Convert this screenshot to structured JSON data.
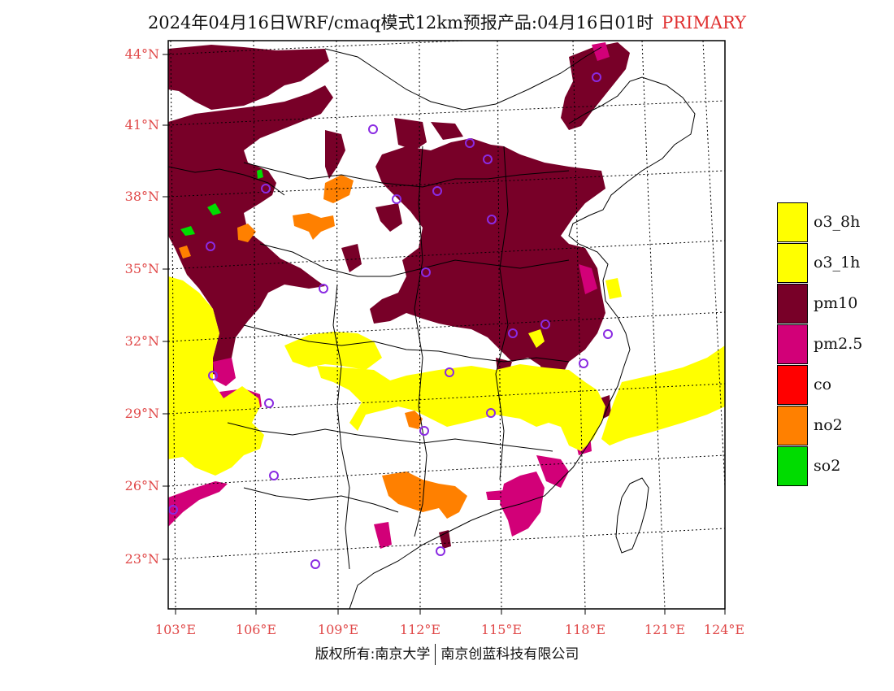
{
  "title": {
    "main": "2024年04月16日WRF/cmaq模式12km预报产品:04月16日01时",
    "tag": "PRIMARY"
  },
  "axes": {
    "lat_labels": [
      "44°N",
      "41°N",
      "38°N",
      "35°N",
      "32°N",
      "29°N",
      "26°N",
      "23°N"
    ],
    "lon_labels": [
      "103°E",
      "106°E",
      "109°E",
      "112°E",
      "115°E",
      "118°E",
      "121°E",
      "124°E"
    ]
  },
  "legend": {
    "items": [
      {
        "label": "o3_8h",
        "color": "#ffff00"
      },
      {
        "label": "o3_1h",
        "color": "#ffff00"
      },
      {
        "label": "pm10",
        "color": "#780028"
      },
      {
        "label": "pm2.5",
        "color": "#d20078"
      },
      {
        "label": "co",
        "color": "#ff0000"
      },
      {
        "label": "no2",
        "color": "#ff8000"
      },
      {
        "label": "so2",
        "color": "#00dc00"
      }
    ]
  },
  "footer": {
    "left": "版权所有:南京大学",
    "right": "南京创蓝科技有限公司"
  },
  "colors": {
    "tick_label": "#e04848",
    "pm10": "#780028",
    "pm25": "#d20078",
    "o3": "#ffff00",
    "no2": "#ff8000",
    "so2": "#00dc00",
    "station": "#8a2be2"
  }
}
